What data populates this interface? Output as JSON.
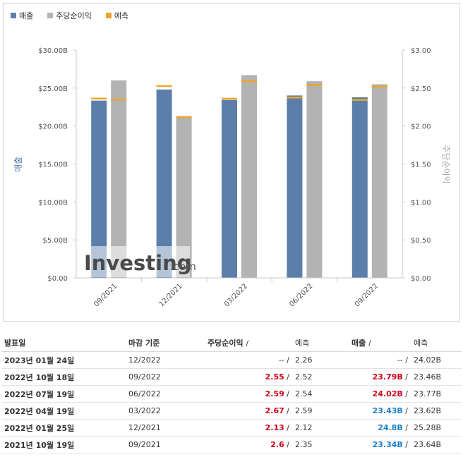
{
  "legend": {
    "revenue": "매출",
    "eps": "주당순이익",
    "forecast": "예측"
  },
  "colors": {
    "revenue": "#5b7faa",
    "eps": "#b3b3b3",
    "forecast": "#f0a428",
    "positive": "#d0021b",
    "negative": "#1b80cf"
  },
  "watermark": {
    "brand": "Investing",
    "suffix": ".com"
  },
  "chart_data": {
    "type": "bar",
    "categories": [
      "09/2021",
      "12/2021",
      "03/2022",
      "06/2022",
      "09/2022"
    ],
    "series": [
      {
        "name": "매출",
        "axis": "left",
        "values": [
          23.34,
          24.8,
          23.43,
          24.02,
          23.79
        ],
        "forecast": [
          23.64,
          25.28,
          23.62,
          23.77,
          23.46
        ]
      },
      {
        "name": "주당순이익",
        "axis": "right",
        "values": [
          2.6,
          2.13,
          2.67,
          2.59,
          2.55
        ],
        "forecast": [
          2.35,
          2.12,
          2.59,
          2.54,
          2.52
        ]
      }
    ],
    "left_axis": {
      "label": "매출",
      "ticks": [
        "$0.00",
        "$5.00B",
        "$10.00B",
        "$15.00B",
        "$20.00B",
        "$25.00B",
        "$30.00B"
      ],
      "ylim": [
        0,
        30
      ]
    },
    "right_axis": {
      "label": "주당순이익",
      "ticks": [
        "$0.00",
        "$0.50",
        "$1.00",
        "$1.50",
        "$2.00",
        "$2.50",
        "$3.00"
      ],
      "ylim": [
        0,
        3
      ]
    },
    "grid": false,
    "legend_position": "top-left"
  },
  "table": {
    "headers": {
      "date": "발표일",
      "period": "마감 기준",
      "eps": "주당순이익",
      "eps_sep": "/",
      "eps_forecast": "예측",
      "revenue": "매출",
      "revenue_sep": "/",
      "revenue_forecast": "예측"
    },
    "rows": [
      {
        "date": "2023년 01월 24일",
        "period": "12/2022",
        "eps": "--",
        "eps_sep": "/",
        "eps_forecast": "2.26",
        "revenue": "--",
        "revenue_sep": "/",
        "revenue_forecast": "24.02B"
      },
      {
        "date": "2022년 10월 18일",
        "period": "09/2022",
        "eps": "2.55",
        "eps_sep": "/",
        "eps_forecast": "2.52",
        "revenue": "23.79B",
        "revenue_sep": "/",
        "revenue_forecast": "23.46B"
      },
      {
        "date": "2022년 07월 19일",
        "period": "06/2022",
        "eps": "2.59",
        "eps_sep": "/",
        "eps_forecast": "2.54",
        "revenue": "24.02B",
        "revenue_sep": "/",
        "revenue_forecast": "23.77B"
      },
      {
        "date": "2022년 04월 19일",
        "period": "03/2022",
        "eps": "2.67",
        "eps_sep": "/",
        "eps_forecast": "2.59",
        "revenue": "23.43B",
        "revenue_sep": "/",
        "revenue_forecast": "23.62B"
      },
      {
        "date": "2022년 01월 25일",
        "period": "12/2021",
        "eps": "2.13",
        "eps_sep": "/",
        "eps_forecast": "2.12",
        "revenue": "24.8B",
        "revenue_sep": "/",
        "revenue_forecast": "25.28B"
      },
      {
        "date": "2021년 10월 19일",
        "period": "09/2021",
        "eps": "2.6",
        "eps_sep": "/",
        "eps_forecast": "2.35",
        "revenue": "23.34B",
        "revenue_sep": "/",
        "revenue_forecast": "23.64B"
      }
    ]
  }
}
